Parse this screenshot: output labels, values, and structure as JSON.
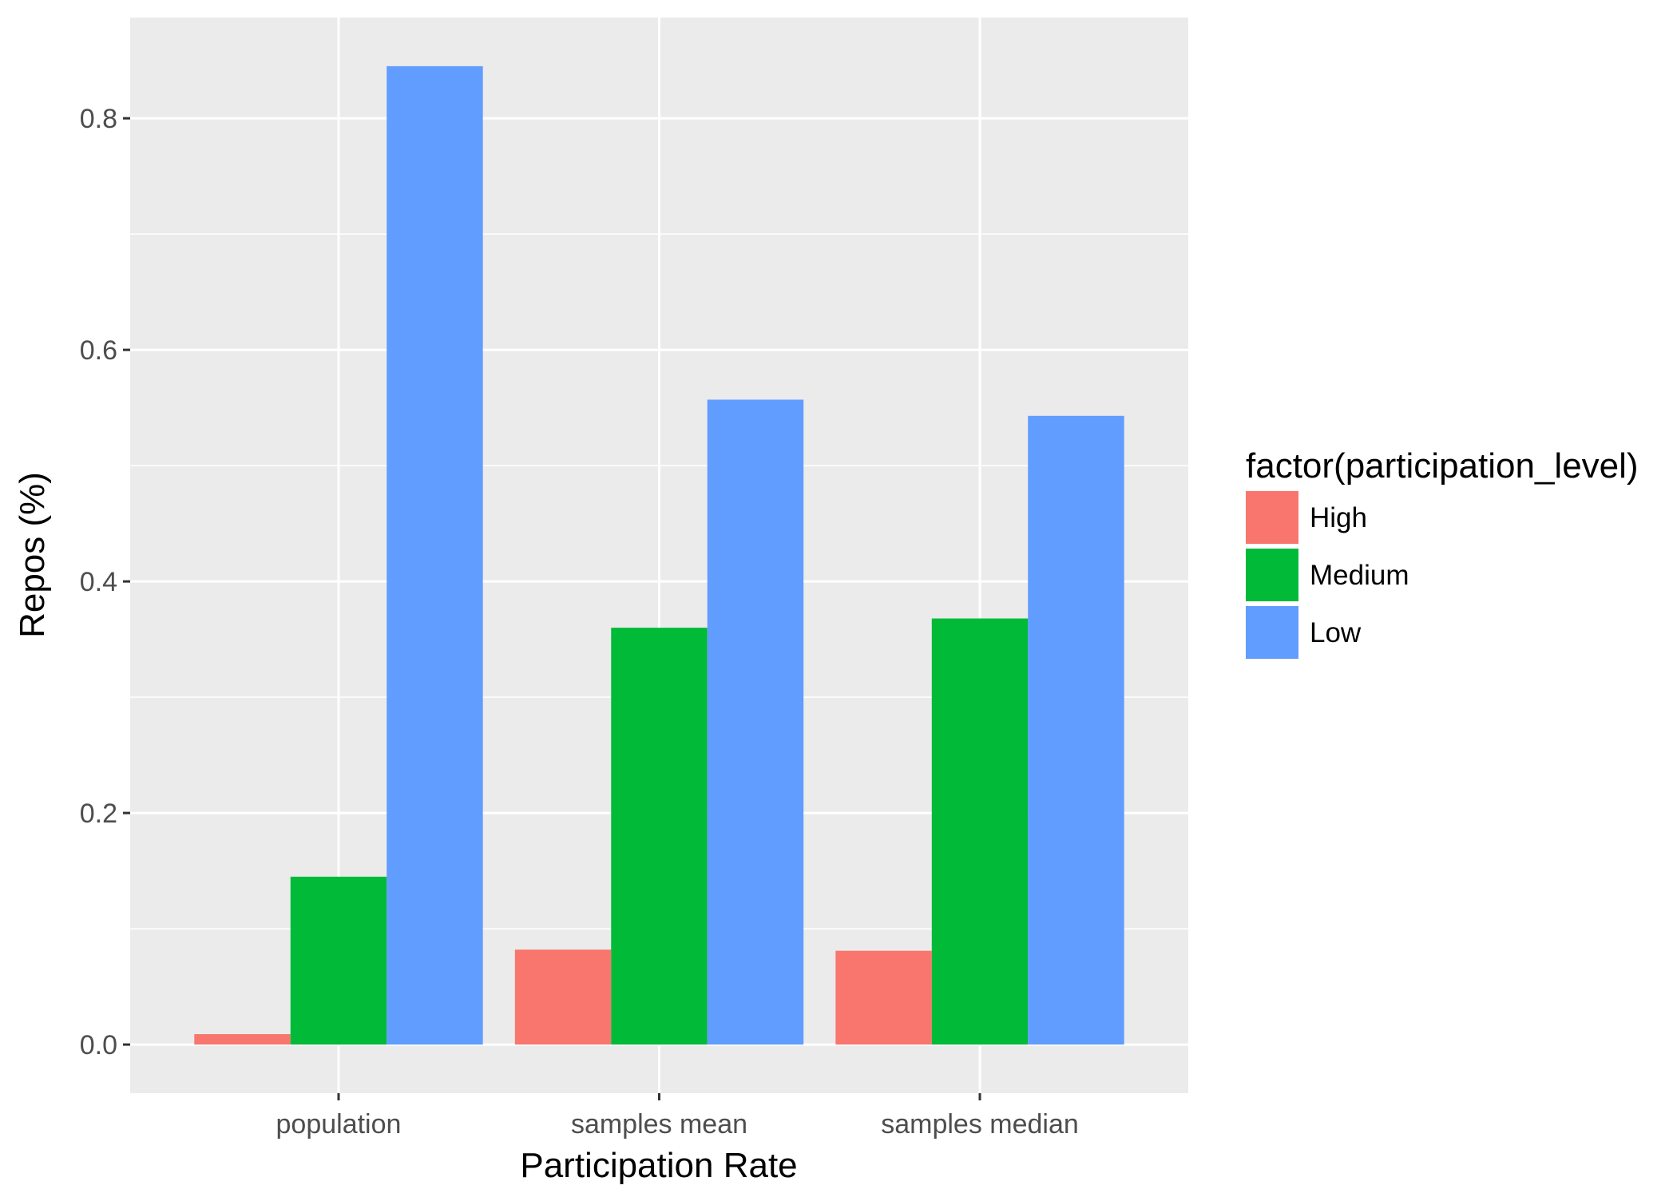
{
  "chart_data": {
    "type": "bar",
    "title": "",
    "xlabel": "Participation Rate",
    "ylabel": "Repos (%)",
    "categories": [
      "population",
      "samples mean",
      "samples median"
    ],
    "series": [
      {
        "name": "High",
        "color": "#F8766D",
        "values": [
          0.009,
          0.082,
          0.081
        ]
      },
      {
        "name": "Medium",
        "color": "#00BA38",
        "values": [
          0.145,
          0.36,
          0.368
        ]
      },
      {
        "name": "Low",
        "color": "#619CFF",
        "values": [
          0.845,
          0.557,
          0.543
        ]
      }
    ],
    "ylim": [
      -0.042,
      0.887
    ],
    "yticks": [
      0.0,
      0.2,
      0.4,
      0.6,
      0.8
    ],
    "ytick_labels": [
      "0.0",
      "0.2",
      "0.4",
      "0.6",
      "0.8"
    ],
    "legend": {
      "title": "factor(participation_level)",
      "position": "right"
    },
    "grid": true,
    "panel_background": "#EBEBEB"
  }
}
